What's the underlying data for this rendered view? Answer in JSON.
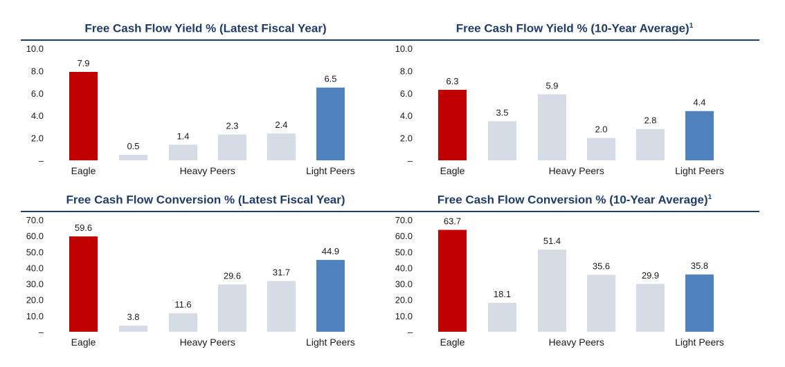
{
  "colors": {
    "title": "#1f3c68",
    "eagle": "#c00000",
    "heavy": "#d6dce5",
    "light": "#4f81bd"
  },
  "chart_data": [
    {
      "type": "bar",
      "title": "Free Cash Flow Yield % (Latest Fiscal Year)",
      "title_sup": "",
      "groups": [
        "Eagle",
        "Heavy Peers",
        "Light Peers"
      ],
      "bars": [
        {
          "group": "Eagle",
          "value": 7.9,
          "label": "7.9"
        },
        {
          "group": "Heavy Peers",
          "value": 0.5,
          "label": "0.5"
        },
        {
          "group": "Heavy Peers",
          "value": 1.4,
          "label": "1.4"
        },
        {
          "group": "Heavy Peers",
          "value": 2.3,
          "label": "2.3"
        },
        {
          "group": "Heavy Peers",
          "value": 2.4,
          "label": "2.4"
        },
        {
          "group": "Light Peers",
          "value": 6.5,
          "label": "6.5"
        }
      ],
      "ylim": [
        0,
        10
      ],
      "yticks": [
        {
          "value": 10,
          "label": "10.0"
        },
        {
          "value": 8,
          "label": "8.0"
        },
        {
          "value": 6,
          "label": "6.0"
        },
        {
          "value": 4,
          "label": "4.0"
        },
        {
          "value": 2,
          "label": "2.0"
        },
        {
          "value": 0,
          "label": "–"
        }
      ],
      "grid": false
    },
    {
      "type": "bar",
      "title": "Free Cash Flow Yield % (10-Year Average)",
      "title_sup": "1",
      "groups": [
        "Eagle",
        "Heavy Peers",
        "Light Peers"
      ],
      "bars": [
        {
          "group": "Eagle",
          "value": 6.3,
          "label": "6.3"
        },
        {
          "group": "Heavy Peers",
          "value": 3.5,
          "label": "3.5"
        },
        {
          "group": "Heavy Peers",
          "value": 5.9,
          "label": "5.9"
        },
        {
          "group": "Heavy Peers",
          "value": 2.0,
          "label": "2.0"
        },
        {
          "group": "Heavy Peers",
          "value": 2.8,
          "label": "2.8"
        },
        {
          "group": "Light Peers",
          "value": 4.4,
          "label": "4.4"
        }
      ],
      "ylim": [
        0,
        10
      ],
      "yticks": [
        {
          "value": 10,
          "label": "10.0"
        },
        {
          "value": 8,
          "label": "8.0"
        },
        {
          "value": 6,
          "label": "6.0"
        },
        {
          "value": 4,
          "label": "4.0"
        },
        {
          "value": 2,
          "label": "2.0"
        },
        {
          "value": 0,
          "label": "–"
        }
      ],
      "grid": false
    },
    {
      "type": "bar",
      "title": "Free Cash Flow Conversion % (Latest Fiscal Year)",
      "title_sup": "",
      "groups": [
        "Eagle",
        "Heavy Peers",
        "Light Peers"
      ],
      "bars": [
        {
          "group": "Eagle",
          "value": 59.6,
          "label": "59.6"
        },
        {
          "group": "Heavy Peers",
          "value": 3.8,
          "label": "3.8"
        },
        {
          "group": "Heavy Peers",
          "value": 11.6,
          "label": "11.6"
        },
        {
          "group": "Heavy Peers",
          "value": 29.6,
          "label": "29.6"
        },
        {
          "group": "Heavy Peers",
          "value": 31.7,
          "label": "31.7"
        },
        {
          "group": "Light Peers",
          "value": 44.9,
          "label": "44.9"
        }
      ],
      "ylim": [
        0,
        70
      ],
      "yticks": [
        {
          "value": 70,
          "label": "70.0"
        },
        {
          "value": 60,
          "label": "60.0"
        },
        {
          "value": 50,
          "label": "50.0"
        },
        {
          "value": 40,
          "label": "40.0"
        },
        {
          "value": 30,
          "label": "30.0"
        },
        {
          "value": 20,
          "label": "20.0"
        },
        {
          "value": 10,
          "label": "10.0"
        },
        {
          "value": 0,
          "label": "–"
        }
      ],
      "grid": false
    },
    {
      "type": "bar",
      "title": "Free Cash Flow Conversion % (10-Year Average)",
      "title_sup": "1",
      "groups": [
        "Eagle",
        "Heavy Peers",
        "Light Peers"
      ],
      "bars": [
        {
          "group": "Eagle",
          "value": 63.7,
          "label": "63.7"
        },
        {
          "group": "Heavy Peers",
          "value": 18.1,
          "label": "18.1"
        },
        {
          "group": "Heavy Peers",
          "value": 51.4,
          "label": "51.4"
        },
        {
          "group": "Heavy Peers",
          "value": 35.6,
          "label": "35.6"
        },
        {
          "group": "Heavy Peers",
          "value": 29.9,
          "label": "29.9"
        },
        {
          "group": "Light Peers",
          "value": 35.8,
          "label": "35.8"
        }
      ],
      "ylim": [
        0,
        70
      ],
      "yticks": [
        {
          "value": 70,
          "label": "70.0"
        },
        {
          "value": 60,
          "label": "60.0"
        },
        {
          "value": 50,
          "label": "50.0"
        },
        {
          "value": 40,
          "label": "40.0"
        },
        {
          "value": 30,
          "label": "30.0"
        },
        {
          "value": 20,
          "label": "20.0"
        },
        {
          "value": 10,
          "label": "10.0"
        },
        {
          "value": 0,
          "label": "–"
        }
      ],
      "grid": false
    }
  ]
}
